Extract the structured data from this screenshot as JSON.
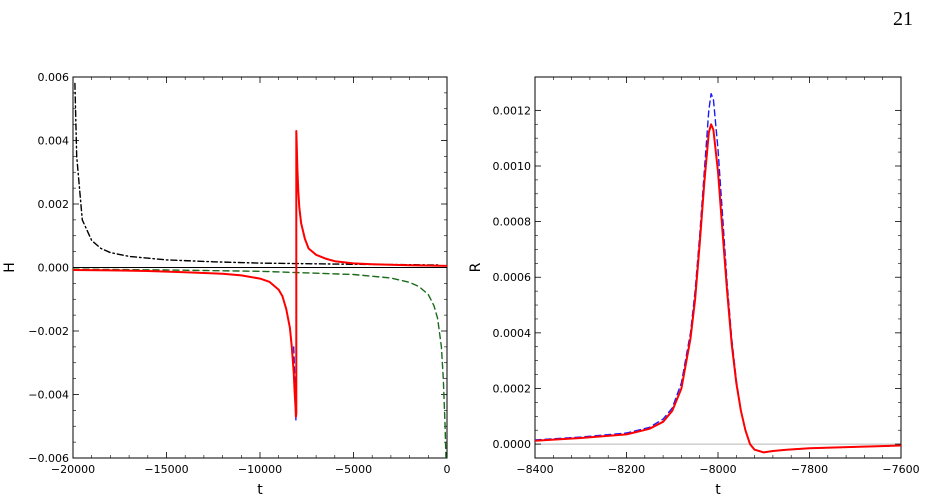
{
  "page_number": "21",
  "chart_data": [
    {
      "type": "line",
      "xlabel": "t",
      "ylabel": "H",
      "xlim": [
        -20000,
        0
      ],
      "ylim": [
        -0.006,
        0.006
      ],
      "x_ticks": [
        -20000,
        -15000,
        -10000,
        -5000,
        0
      ],
      "x_tick_labels": [
        "−20000",
        "−15000",
        "−10000",
        "−5000",
        "0"
      ],
      "y_ticks": [
        -0.006,
        -0.004,
        -0.002,
        0.0,
        0.002,
        0.004,
        0.006
      ],
      "y_tick_labels": [
        "−0.006",
        "−0.004",
        "−0.002",
        "0.000",
        "0.002",
        "0.004",
        "0.006"
      ],
      "grid": false,
      "series": [
        {
          "color": "#000000",
          "style": "dash-dot",
          "x": [
            -19900,
            -19800,
            -19500,
            -19000,
            -18500,
            -18000,
            -17000,
            -15000,
            -12500,
            -10000,
            -7500,
            -5000,
            -2500,
            -500
          ],
          "y": [
            0.0058,
            0.0035,
            0.0015,
            0.00085,
            0.0006,
            0.00047,
            0.00035,
            0.00024,
            0.00018,
            0.00014,
            0.00012,
            0.0001,
            9e-05,
            8e-05
          ]
        },
        {
          "color": "#1a6b1a",
          "style": "dashed",
          "x": [
            -20000,
            -15000,
            -10000,
            -5000,
            -3000,
            -2000,
            -1500,
            -1000,
            -700,
            -500,
            -300,
            -200,
            -100,
            -50
          ],
          "y": [
            -5e-05,
            -8e-05,
            -0.00012,
            -0.00022,
            -0.00033,
            -0.00047,
            -0.0006,
            -0.00085,
            -0.0012,
            -0.0016,
            -0.0025,
            -0.0035,
            -0.005,
            -0.0062
          ]
        },
        {
          "color": "#1a1aff",
          "style": "dashed",
          "x": [
            -8200,
            -8150,
            -8100,
            -8080
          ],
          "y": [
            -0.0025,
            -0.0033,
            -0.0043,
            -0.0048
          ]
        },
        {
          "color": "#ff0000",
          "style": "solid",
          "x": [
            -20000,
            -18000,
            -16000,
            -14000,
            -12000,
            -11000,
            -10000,
            -9500,
            -9000,
            -8800,
            -8600,
            -8400,
            -8300,
            -8200,
            -8150,
            -8100,
            -8080,
            -8060,
            -8060,
            -8040,
            -8000,
            -7950,
            -7900,
            -7800,
            -7600,
            -7400,
            -7000,
            -6500,
            -6000,
            -5000,
            -4000,
            -2000,
            0
          ],
          "y": [
            -8e-05,
            -9e-05,
            -0.00011,
            -0.00015,
            -0.0002,
            -0.00025,
            -0.00035,
            -0.00045,
            -0.0007,
            -0.0009,
            -0.0013,
            -0.0019,
            -0.0025,
            -0.0033,
            -0.0039,
            -0.0044,
            -0.0047,
            -0.0046,
            0.0043,
            0.0039,
            0.0031,
            0.0024,
            0.0019,
            0.0014,
            0.0009,
            0.0006,
            0.0004,
            0.00028,
            0.0002,
            0.00013,
            0.0001,
            7e-05,
            5e-05
          ]
        }
      ]
    },
    {
      "type": "line",
      "xlabel": "t",
      "ylabel": "R",
      "xlim": [
        -8400,
        -7600
      ],
      "ylim": [
        -5e-05,
        0.00132
      ],
      "x_ticks": [
        -8400,
        -8200,
        -8000,
        -7800,
        -7600
      ],
      "x_tick_labels": [
        "−8400",
        "−8200",
        "−8000",
        "−7800",
        "−7600"
      ],
      "y_ticks": [
        0.0,
        0.0002,
        0.0004,
        0.0006,
        0.0008,
        0.001,
        0.0012
      ],
      "y_tick_labels": [
        "0.0000",
        "0.0002",
        "0.0004",
        "0.0006",
        "0.0008",
        "0.0010",
        "0.0012"
      ],
      "grid": false,
      "reference_line_y": 0.0,
      "series": [
        {
          "color": "#1a1aff",
          "style": "dashed",
          "x": [
            -8400,
            -8300,
            -8200,
            -8150,
            -8120,
            -8100,
            -8080,
            -8060,
            -8050,
            -8040,
            -8030,
            -8020,
            -8015,
            -8010,
            -8000,
            -7990,
            -7980,
            -7970,
            -7960,
            -7950,
            -7940,
            -7930,
            -7920,
            -7900,
            -7880,
            -7850,
            -7800,
            -7700,
            -7600
          ],
          "y": [
            1.5e-05,
            2.5e-05,
            4e-05,
            6e-05,
            9e-05,
            0.00013,
            0.00022,
            0.0004,
            0.00055,
            0.00075,
            0.00098,
            0.0012,
            0.00126,
            0.00124,
            0.00106,
            0.00082,
            0.00058,
            0.00038,
            0.00023,
            0.00012,
            5e-05,
            0.0,
            -2e-05,
            -3e-05,
            -2.5e-05,
            -2e-05,
            -1.5e-05,
            -1e-05,
            -5e-06
          ]
        },
        {
          "color": "#ff0000",
          "style": "solid",
          "x": [
            -8400,
            -8300,
            -8200,
            -8150,
            -8120,
            -8100,
            -8080,
            -8060,
            -8050,
            -8040,
            -8030,
            -8020,
            -8015,
            -8010,
            -8000,
            -7990,
            -7980,
            -7970,
            -7960,
            -7950,
            -7940,
            -7930,
            -7920,
            -7900,
            -7880,
            -7850,
            -7800,
            -7700,
            -7600
          ],
          "y": [
            1.2e-05,
            2.2e-05,
            3.5e-05,
            5.5e-05,
            8e-05,
            0.00012,
            0.0002,
            0.00038,
            0.00052,
            0.00072,
            0.00094,
            0.00112,
            0.00115,
            0.00113,
            0.00098,
            0.00076,
            0.00055,
            0.00036,
            0.00022,
            0.00012,
            5e-05,
            0.0,
            -2e-05,
            -3e-05,
            -2.5e-05,
            -2e-05,
            -1.5e-05,
            -1e-05,
            -5e-06
          ]
        }
      ]
    }
  ]
}
